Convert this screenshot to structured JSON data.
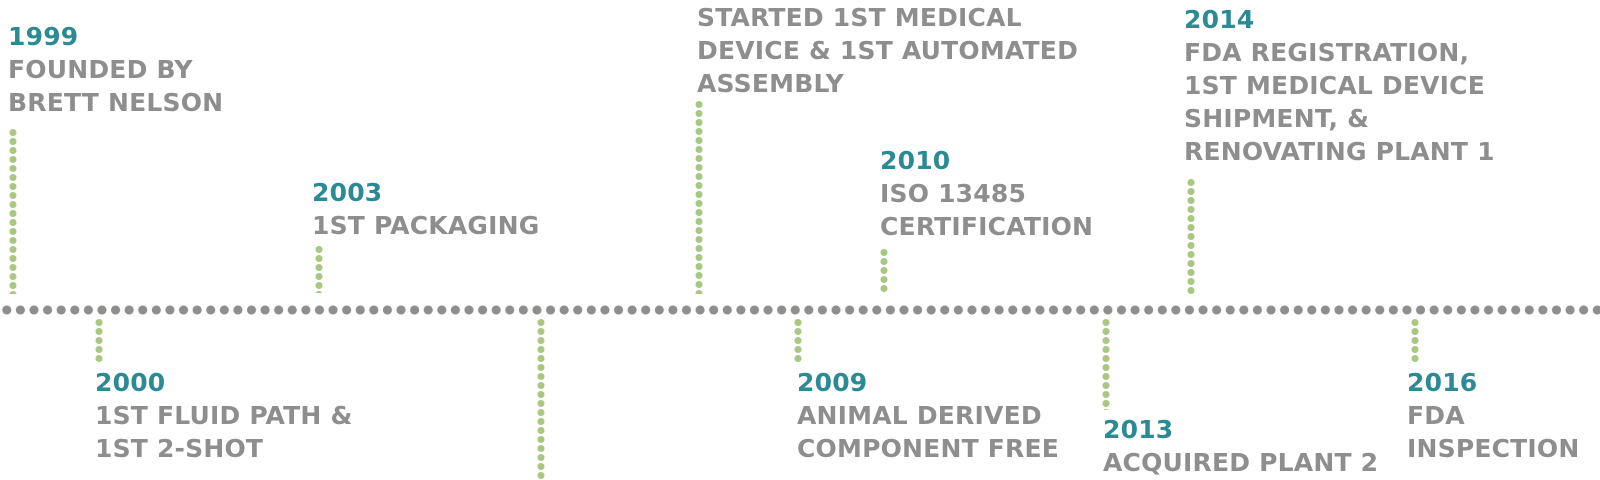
{
  "milestones": [
    {
      "id": "1999",
      "year": "1999",
      "desc": "FOUNDED BY\nBRETT NELSON",
      "side": "top"
    },
    {
      "id": "2000",
      "year": "2000",
      "desc": "1ST FLUID PATH &\n1ST 2-SHOT",
      "side": "bottom"
    },
    {
      "id": "2003",
      "year": "2003",
      "desc": "1ST PACKAGING",
      "side": "top"
    },
    {
      "id": "2006",
      "year": "",
      "desc": "STARTED 1ST MEDICAL\nDEVICE & 1ST AUTOMATED\nASSEMBLY",
      "side": "top"
    },
    {
      "id": "2009",
      "year": "2009",
      "desc": "ANIMAL DERIVED\nCOMPONENT FREE",
      "side": "bottom"
    },
    {
      "id": "2010",
      "year": "2010",
      "desc": "ISO 13485\nCERTIFICATION",
      "side": "top"
    },
    {
      "id": "2013",
      "year": "2013",
      "desc": "ACQUIRED PLANT 2",
      "side": "bottom"
    },
    {
      "id": "2014",
      "year": "2014",
      "desc": "FDA REGISTRATION,\n1ST MEDICAL DEVICE\nSHIPMENT, &\nRENOVATING PLANT 1",
      "side": "top"
    },
    {
      "id": "2016",
      "year": "2016",
      "desc": "FDA\nINSPECTION",
      "side": "bottom"
    }
  ],
  "colors": {
    "axis": "#8e8e8e",
    "connector": "#a8c882",
    "year": "#2b8a93",
    "text": "#8e8e8e"
  }
}
